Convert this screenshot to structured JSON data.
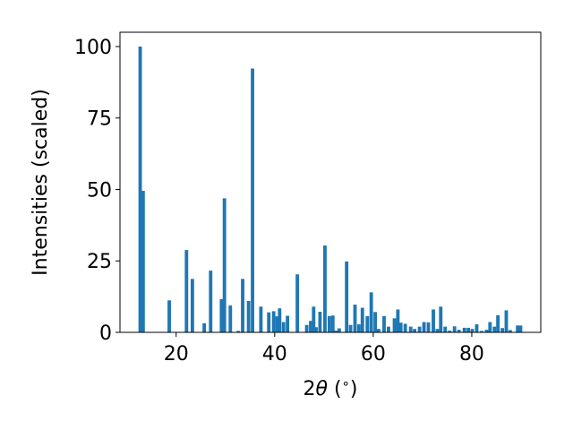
{
  "chart_data": {
    "type": "bar",
    "title": "",
    "xlabel_parts": {
      "prefix": "2",
      "symbol": "θ",
      "suffix": " (",
      "unit": "∘",
      "end": ")"
    },
    "ylabel": "Intensities (scaled)",
    "xlim": [
      8.6,
      94.0
    ],
    "ylim": [
      0,
      105
    ],
    "xticks": [
      20,
      40,
      60,
      80
    ],
    "yticks": [
      0,
      25,
      50,
      75,
      100
    ],
    "grid": false,
    "legend": "none",
    "bar_color": "#1f77b4",
    "bar_width": 0.7,
    "x": [
      12.7,
      13.3,
      18.6,
      22.1,
      23.3,
      25.7,
      27.0,
      29.2,
      29.8,
      31.0,
      32.6,
      33.5,
      34.7,
      35.5,
      37.2,
      38.8,
      39.8,
      40.5,
      41.0,
      41.8,
      42.6,
      44.6,
      46.5,
      47.3,
      47.9,
      48.4,
      49.2,
      50.2,
      51.1,
      51.8,
      52.4,
      53.1,
      54.6,
      55.4,
      56.3,
      57.1,
      57.8,
      58.8,
      59.6,
      60.4,
      61.1,
      62.2,
      63.1,
      64.3,
      65.0,
      65.6,
      66.5,
      67.6,
      68.4,
      69.4,
      70.3,
      71.2,
      72.2,
      73.0,
      73.7,
      74.6,
      75.5,
      76.5,
      77.4,
      78.5,
      79.3,
      80.1,
      81.0,
      82.0,
      83.0,
      83.7,
      84.6,
      85.3,
      86.2,
      87.0,
      87.8,
      89.3,
      89.9
    ],
    "values": [
      100,
      49.5,
      11.2,
      28.8,
      18.7,
      3.2,
      21.6,
      11.6,
      46.9,
      9.4,
      0.5,
      18.7,
      11.0,
      92.3,
      9.0,
      7.0,
      7.4,
      5.6,
      8.4,
      3.6,
      5.8,
      20.3,
      2.6,
      4.0,
      9.0,
      1.8,
      7.2,
      30.4,
      5.7,
      5.9,
      0.6,
      1.4,
      24.8,
      2.6,
      9.7,
      2.8,
      8.6,
      5.7,
      14.0,
      7.1,
      1.2,
      5.7,
      2.0,
      4.9,
      8.0,
      3.4,
      3.0,
      2.0,
      1.2,
      2.0,
      3.6,
      3.5,
      8.0,
      1.2,
      9.0,
      2.0,
      0.6,
      2.1,
      0.9,
      1.6,
      1.6,
      1.2,
      2.8,
      0.5,
      0.9,
      3.6,
      2.0,
      6.0,
      1.5,
      7.7,
      0.8,
      2.4,
      2.4
    ]
  }
}
